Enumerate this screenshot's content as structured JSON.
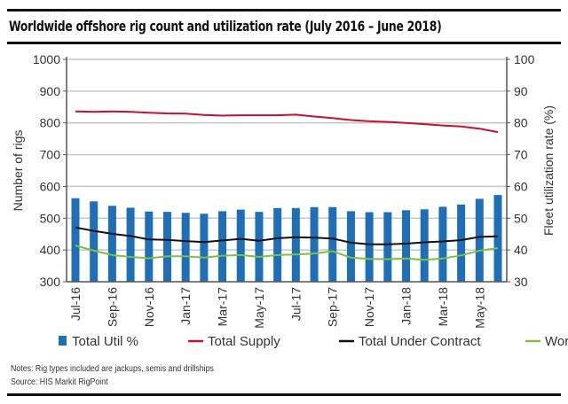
{
  "chart_data": {
    "type": "bar+line",
    "title": "Worldwide offshore rig count and utilization rate (July 2016 – June 2018)",
    "ylabel": "Number of rigs",
    "y2label": "Fleet utilization rate (%)",
    "ylim": [
      300,
      1000
    ],
    "y2lim": [
      30,
      100
    ],
    "yticks": [
      300,
      400,
      500,
      600,
      700,
      800,
      900,
      1000
    ],
    "y2ticks": [
      30,
      40,
      50,
      60,
      70,
      80,
      90,
      100
    ],
    "grid": true,
    "legend_position": "bottom",
    "x": [
      "Jul-16",
      "Aug-16",
      "Sep-16",
      "Oct-16",
      "Nov-16",
      "Dec-16",
      "Jan-17",
      "Feb-17",
      "Mar-17",
      "Apr-17",
      "May-17",
      "Jun-17",
      "Jul-17",
      "Aug-17",
      "Sep-17",
      "Oct-17",
      "Nov-17",
      "Dec-17",
      "Jan-18",
      "Feb-18",
      "Mar-18",
      "Apr-18",
      "May-18",
      "Jun-18"
    ],
    "xtick_labels": [
      "Jul-16",
      "Sep-16",
      "Nov-16",
      "Jan-17",
      "Mar-17",
      "May-17",
      "Jul-17",
      "Sep-17",
      "Nov-17",
      "Jan-18",
      "Mar-18",
      "May-18"
    ],
    "series": [
      {
        "name": "Total Util %",
        "type": "bar",
        "axis": "right",
        "color": "#1f6fb8",
        "values": [
          56.3,
          55.3,
          53.9,
          53.3,
          52.1,
          52.0,
          51.7,
          51.4,
          52.2,
          52.7,
          52.0,
          53.2,
          53.2,
          53.5,
          53.5,
          52.2,
          51.9,
          51.9,
          52.5,
          52.8,
          53.6,
          54.3,
          56.1,
          57.3
        ]
      },
      {
        "name": "Total Supply",
        "type": "line",
        "axis": "left",
        "color": "#c8102e",
        "values": [
          836,
          835,
          836,
          835,
          832,
          830,
          829,
          825,
          823,
          824,
          824,
          824,
          826,
          820,
          815,
          809,
          805,
          803,
          800,
          796,
          792,
          789,
          782,
          771
        ]
      },
      {
        "name": "Total Under Contract",
        "type": "line",
        "axis": "left",
        "color": "#111111",
        "values": [
          471,
          460,
          451,
          444,
          433,
          432,
          428,
          425,
          430,
          435,
          429,
          437,
          440,
          439,
          436,
          423,
          418,
          418,
          420,
          424,
          427,
          431,
          441,
          443
        ]
      },
      {
        "name": "Working",
        "type": "line",
        "axis": "left",
        "color": "#7cc242",
        "values": [
          414,
          398,
          384,
          378,
          374,
          380,
          380,
          376,
          382,
          384,
          378,
          384,
          386,
          389,
          396,
          376,
          372,
          371,
          373,
          369,
          373,
          383,
          398,
          406
        ]
      }
    ]
  },
  "notes": "Notes: Rig types included are jackups, semis and drillships",
  "source": "Source: HIS Markit RigPoint"
}
